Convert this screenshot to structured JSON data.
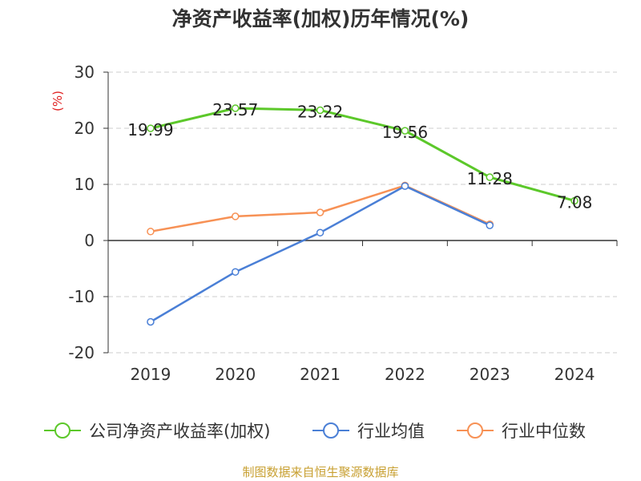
{
  "chart_data": {
    "type": "line",
    "title": "净资产收益率(加权)历年情况(%)",
    "ylabel": "(%)",
    "xlabel": "",
    "categories": [
      "2019",
      "2020",
      "2021",
      "2022",
      "2023",
      "2024"
    ],
    "ylim": [
      -20,
      30
    ],
    "yticks": [
      -20,
      -10,
      0,
      10,
      20,
      30
    ],
    "series": [
      {
        "name": "公司净资产收益率(加权)",
        "color": "#5cc82a",
        "values": [
          19.99,
          23.57,
          23.22,
          19.56,
          11.28,
          7.08
        ],
        "data_labels": [
          "19.99",
          "23.57",
          "23.22",
          "19.56",
          "11.28",
          "7.08"
        ]
      },
      {
        "name": "行业均值",
        "color": "#4a7fd6",
        "values": [
          -14.5,
          -5.6,
          1.4,
          9.7,
          2.7,
          null
        ]
      },
      {
        "name": "行业中位数",
        "color": "#f79155",
        "values": [
          1.6,
          4.3,
          5.0,
          9.8,
          2.9,
          null
        ]
      }
    ],
    "ylabel_color": "#e02020",
    "grid": true,
    "legend_position": "bottom"
  },
  "source_text": "制图数据来自恒生聚源数据库"
}
